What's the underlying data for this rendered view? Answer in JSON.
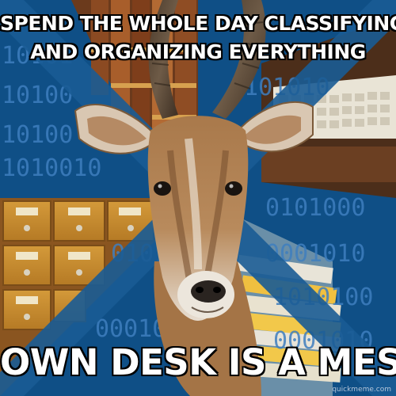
{
  "meme": {
    "top_line_1": "SPEND THE WHOLE DAY CLASSIFYING",
    "top_line_2": "AND ORGANIZING EVERYTHING",
    "bottom_text": "OWN DESK IS A MESS",
    "watermark": "quickmeme.com"
  },
  "binary_text": {
    "tl_1": "10101",
    "tl_2": "10100",
    "tl_3": "10100",
    "tl_4": "1010010",
    "br_1": "0101000",
    "br_2": "0001010",
    "br_3": "1010100",
    "br_4": "0001010",
    "tr_1": "1101010",
    "bl_1": "0101",
    "bl_2": "0001010"
  },
  "colors": {
    "blue_background": "#0f4f86",
    "binary_text": "#3f7fbf",
    "caption_text": "#ffffff",
    "caption_outline": "#000000"
  }
}
